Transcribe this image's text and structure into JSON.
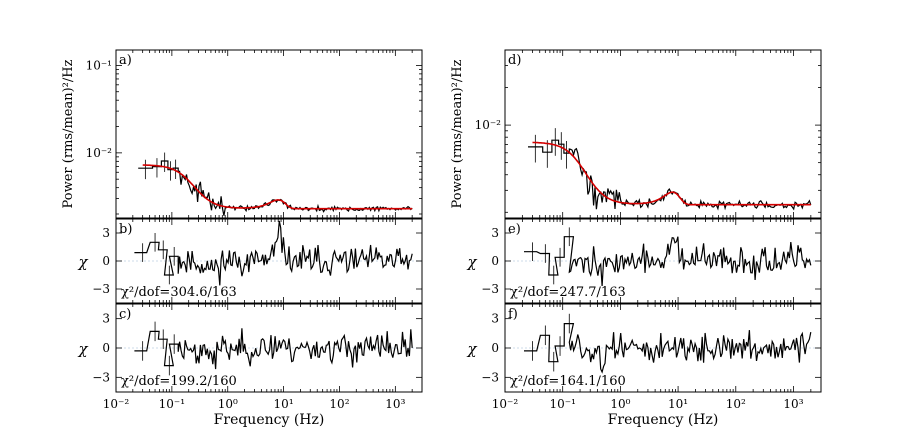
{
  "chart_data": {
    "type": "line",
    "xlabel": "Frequency (Hz)",
    "x_scale": "log",
    "xlim": [
      0.01,
      3000
    ],
    "x_ticklabels": [
      "10⁻²",
      "10⁻¹",
      "10⁰",
      "10¹",
      "10²",
      "10³"
    ],
    "ylabel_power": "Power (rms/mean)²/Hz",
    "ylabel_resid": "χ",
    "resid_ylim": [
      -4.5,
      4.5
    ],
    "resid_ticklabels": [
      "3",
      "0",
      "−3"
    ],
    "power_model": {
      "A": 0.005,
      "f0": 0.2,
      "index": 2.5,
      "level": 0.0023,
      "qpo_amp": 0.0006,
      "qpo_f": 8.0,
      "qpo_w": 2.5
    },
    "columns": [
      {
        "power_panel": {
          "label": "a)",
          "ylim": [
            0.0018,
            0.15
          ],
          "ticks": [
            {
              "value": 0.1,
              "label": "10⁻¹"
            },
            {
              "value": 0.01,
              "label": "10⁻²"
            }
          ]
        },
        "resid_panels": [
          {
            "label": "b)",
            "stat": "χ²/dof=304.6/163",
            "qpo_feature": 3.0,
            "seed": 11,
            "lowfreq_points": [
              [
                0.03,
                0.9
              ],
              [
                0.05,
                2.0
              ],
              [
                0.07,
                1.2
              ],
              [
                0.09,
                -1.5
              ],
              [
                0.11,
                0.5
              ]
            ]
          },
          {
            "label": "c)",
            "stat": "χ²/dof=199.2/160",
            "qpo_feature": 0.4,
            "seed": 23,
            "lowfreq_points": [
              [
                0.03,
                -0.3
              ],
              [
                0.05,
                1.7
              ],
              [
                0.07,
                0.9
              ],
              [
                0.09,
                -1.8
              ],
              [
                0.11,
                0.4
              ]
            ]
          }
        ]
      },
      {
        "power_panel": {
          "label": "d)",
          "ylim": [
            0.0018,
            0.04
          ],
          "ticks": [
            {
              "value": 0.01,
              "label": "10⁻²"
            }
          ]
        },
        "resid_panels": [
          {
            "label": "e)",
            "stat": "χ²/dof=247.7/163",
            "qpo_feature": 2.5,
            "seed": 37,
            "lowfreq_points": [
              [
                0.03,
                1.0
              ],
              [
                0.05,
                0.8
              ],
              [
                0.07,
                -1.5
              ],
              [
                0.09,
                0.4
              ],
              [
                0.13,
                2.6
              ]
            ]
          },
          {
            "label": "f)",
            "stat": "χ²/dof=164.1/160",
            "qpo_feature": 0.3,
            "seed": 51,
            "lowfreq_points": [
              [
                0.03,
                -0.3
              ],
              [
                0.05,
                1.3
              ],
              [
                0.07,
                -1.4
              ],
              [
                0.09,
                0.2
              ],
              [
                0.13,
                2.5
              ]
            ]
          }
        ]
      }
    ]
  }
}
